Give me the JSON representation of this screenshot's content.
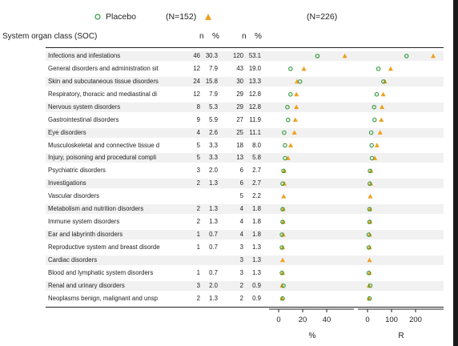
{
  "legend": {
    "placebo_label": "Placebo",
    "placebo_n": "(N=152)",
    "treatment_n": "(N=226)"
  },
  "header": {
    "soc_col": "System organ class (SOC)",
    "n": "n",
    "pct": "%"
  },
  "colors": {
    "placebo": "#2e9a3a",
    "treatment": "#f0a020",
    "stripe": "#f1f1f1"
  },
  "chart_data": {
    "type": "scatter",
    "categories": [
      "Infections and infestations",
      "General disorders and administration sit",
      "Skin and subcutaneous tissue disorders",
      "Respiratory, thoracic and mediastinal di",
      "Nervous system disorders",
      "Gastrointestinal disorders",
      "Eye disorders",
      "Musculoskeletal and connective tissue d",
      "Injury, poisoning and procedural compli",
      "Psychiatric disorders",
      "Investigations",
      "Vascular disorders",
      "Metabolism and nutrition disorders",
      "Immune system disorders",
      "Ear and labyrinth disorders",
      "Reproductive system and breast disorde",
      "Cardiac disorders",
      "Blood and lymphatic system disorders",
      "Renal and urinary disorders",
      "Neoplasms benign, malignant and unsp"
    ],
    "placebo": {
      "n": [
        "46",
        "12",
        "24",
        "12",
        "8",
        "9",
        "4",
        "5",
        "5",
        "3",
        "2",
        "",
        "2",
        "2",
        "1",
        "1",
        "",
        "1",
        "3",
        "2"
      ],
      "pct": [
        "30.3",
        "7.9",
        "15.8",
        "7.9",
        "5.3",
        "5.9",
        "2.6",
        "3.3",
        "3.3",
        "2.0",
        "1.3",
        "",
        "1.3",
        "1.3",
        "0.7",
        "0.7",
        "",
        "0.7",
        "2.0",
        "1.3"
      ]
    },
    "treatment": {
      "n": [
        "120",
        "43",
        "30",
        "29",
        "29",
        "27",
        "25",
        "18",
        "13",
        "6",
        "6",
        "5",
        "4",
        "4",
        "4",
        "3",
        "3",
        "3",
        "2",
        "2"
      ],
      "pct": [
        "53.1",
        "19.0",
        "13.3",
        "12.8",
        "12.8",
        "11.9",
        "11.1",
        "8.0",
        "5.8",
        "2.7",
        "2.7",
        "2.2",
        "1.8",
        "1.8",
        "1.8",
        "1.3",
        "1.3",
        "1.3",
        "0.9",
        "0.9"
      ]
    },
    "pct_panel": {
      "xlim": [
        -5,
        62
      ],
      "ticks": [
        0,
        20,
        40
      ],
      "xlabel": "%"
    },
    "r_panel": {
      "xlim": [
        -20,
        285
      ],
      "ticks": [
        0,
        100,
        200
      ],
      "xlabel": "R"
    },
    "r_values": {
      "placebo": [
        159,
        42,
        63,
        35,
        24,
        26,
        12,
        14,
        15,
        7,
        6,
        0,
        5,
        5,
        2,
        2,
        0,
        2,
        8,
        5
      ],
      "treatment": [
        270,
        93,
        69,
        62,
        57,
        54,
        49,
        36,
        27,
        11,
        10,
        8,
        7,
        7,
        6,
        5,
        5,
        5,
        3,
        3
      ]
    }
  }
}
